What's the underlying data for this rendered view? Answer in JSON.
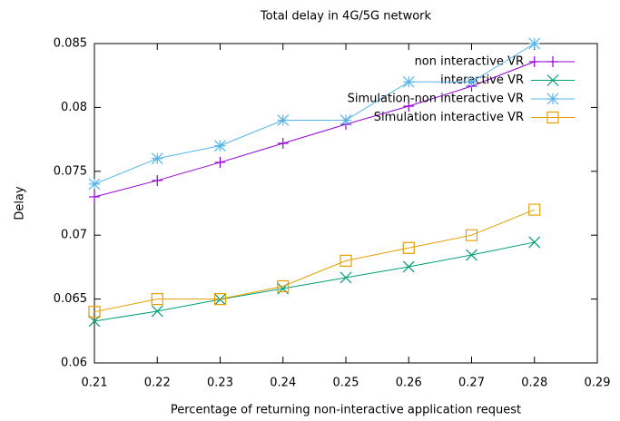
{
  "chart_data": {
    "type": "line",
    "title": "Total delay in 4G/5G network",
    "xlabel": "Percentage of returning non-interactive application request",
    "ylabel": "Delay",
    "x": [
      0.21,
      0.22,
      0.23,
      0.24,
      0.25,
      0.26,
      0.27,
      0.28
    ],
    "series": [
      {
        "name": "non interactive VR",
        "color": "#9400d3",
        "marker": "plus",
        "values": [
          0.073,
          0.07428,
          0.0757,
          0.07719,
          0.07868,
          0.0801,
          0.08166,
          0.08358
        ]
      },
      {
        "name": "interactive VR",
        "color": "#009e73",
        "marker": "cross",
        "values": [
          0.06327,
          0.06405,
          0.06497,
          0.06582,
          0.06668,
          0.06753,
          0.06845,
          0.06945
        ]
      },
      {
        "name": "Simulation-non interactive VR",
        "color": "#56b4e9",
        "marker": "star",
        "values": [
          0.074,
          0.076,
          0.077,
          0.079,
          0.079,
          0.082,
          0.082,
          0.085
        ]
      },
      {
        "name": "Simulation interactive VR",
        "color": "#e69f00",
        "marker": "square",
        "values": [
          0.064,
          0.065,
          0.065,
          0.066,
          0.068,
          0.069,
          0.07,
          0.072
        ]
      }
    ],
    "xlim": [
      0.21,
      0.29
    ],
    "xticks": [
      0.21,
      0.22,
      0.23,
      0.24,
      0.25,
      0.26,
      0.27,
      0.28,
      0.29
    ],
    "ylim": [
      0.06,
      0.085
    ],
    "yticks": [
      0.06,
      0.065,
      0.07,
      0.075,
      0.08,
      0.085
    ],
    "legend": "top-right",
    "grid": false
  }
}
